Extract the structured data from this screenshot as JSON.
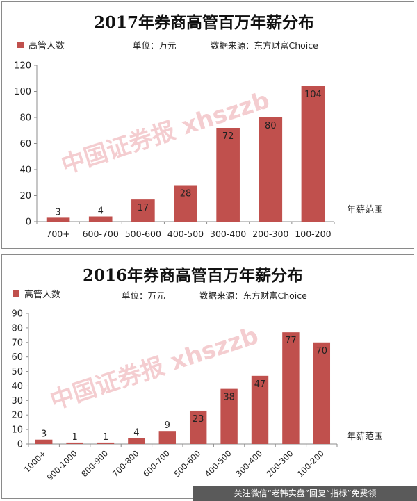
{
  "colors": {
    "bar": "#c0504d",
    "axis": "#8c8c8c",
    "watermark": "#dc5a64"
  },
  "chart_data": [
    {
      "type": "bar",
      "title": "2017年券商高管百万年薪分布",
      "unit_text": "单位：万元",
      "source_text": "数据来源：东方财富Choice",
      "legend": [
        "高管人数"
      ],
      "xlabel": "年薪范围",
      "ylabel": "",
      "categories": [
        "700+",
        "600-700",
        "500-600",
        "400-500",
        "300-400",
        "200-300",
        "100-200"
      ],
      "series": [
        {
          "name": "高管人数",
          "values": [
            3,
            4,
            17,
            28,
            72,
            80,
            104
          ]
        }
      ],
      "ylim": [
        0,
        120
      ],
      "yticks": [
        0,
        20,
        40,
        60,
        80,
        100,
        120
      ],
      "grid": false,
      "legend_position": "top-left",
      "watermark": "中国证券报 xhszzb"
    },
    {
      "type": "bar",
      "title": "2016年券商高管百万年薪分布",
      "unit_text": "单位：万元",
      "source_text": "数据来源：东方财富Choice",
      "legend": [
        "高管人数"
      ],
      "xlabel": "年薪范围",
      "ylabel": "",
      "categories": [
        "1000+",
        "900-1000",
        "800-900",
        "700-800",
        "600-700",
        "500-600",
        "400-500",
        "300-400",
        "200-300",
        "100-200"
      ],
      "series": [
        {
          "name": "高管人数",
          "values": [
            3,
            1,
            1,
            4,
            9,
            23,
            38,
            47,
            77,
            70
          ]
        }
      ],
      "ylim": [
        0,
        90
      ],
      "yticks": [
        0,
        10,
        20,
        30,
        40,
        50,
        60,
        70,
        80,
        90
      ],
      "grid": false,
      "legend_position": "top-left",
      "watermark": "中国证券报 xhszzb"
    }
  ],
  "footer": {
    "text": "关注微信“老韩实盘”回复“指标”免费领"
  }
}
